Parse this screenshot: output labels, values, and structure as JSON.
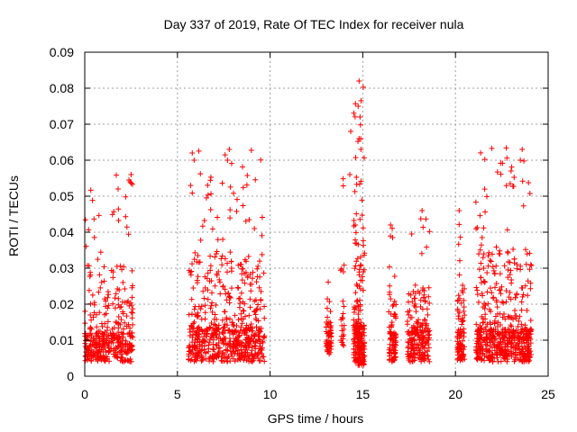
{
  "chart_data": {
    "type": "scatter",
    "title": "Day 337 of 2019, Rate Of TEC Index for receiver nula",
    "xlabel": "GPS time / hours",
    "ylabel": "ROTI / TECUs",
    "xlim": [
      0,
      25
    ],
    "ylim": [
      0,
      0.09
    ],
    "x_ticks": [
      "0",
      "5",
      "10",
      "15",
      "20",
      "25"
    ],
    "y_ticks": [
      "0",
      "0.01",
      "0.02",
      "0.03",
      "0.04",
      "0.05",
      "0.06",
      "0.07",
      "0.08",
      "0.09"
    ],
    "grid": true,
    "marker": "+",
    "color": "#ff0000",
    "clusters": [
      {
        "x_range": [
          0.0,
          2.6
        ],
        "y_base": [
          0.004,
          0.012
        ],
        "y_max": 0.056,
        "count": 380
      },
      {
        "x_range": [
          5.6,
          9.7
        ],
        "y_base": [
          0.004,
          0.013
        ],
        "y_max": 0.063,
        "count": 620
      },
      {
        "x_range": [
          13.0,
          13.3
        ],
        "y_base": [
          0.006,
          0.012
        ],
        "y_max": 0.028,
        "count": 60
      },
      {
        "x_range": [
          13.8,
          14.0
        ],
        "y_base": [
          0.008,
          0.014
        ],
        "y_max": 0.056,
        "count": 25
      },
      {
        "x_range": [
          14.5,
          15.1
        ],
        "y_base": [
          0.003,
          0.014
        ],
        "y_max": 0.082,
        "count": 220
      },
      {
        "x_range": [
          16.4,
          16.8
        ],
        "y_base": [
          0.004,
          0.012
        ],
        "y_max": 0.042,
        "count": 90
      },
      {
        "x_range": [
          17.4,
          18.6
        ],
        "y_base": [
          0.004,
          0.013
        ],
        "y_max": 0.046,
        "count": 210
      },
      {
        "x_range": [
          20.1,
          20.5
        ],
        "y_base": [
          0.004,
          0.012
        ],
        "y_max": 0.046,
        "count": 90
      },
      {
        "x_range": [
          21.1,
          24.1
        ],
        "y_base": [
          0.004,
          0.013
        ],
        "y_max": 0.064,
        "count": 560
      }
    ],
    "highlights": [
      {
        "x": 14.8,
        "y": 0.082
      },
      {
        "x": 14.75,
        "y": 0.075
      },
      {
        "x": 14.85,
        "y": 0.072
      },
      {
        "x": 14.8,
        "y": 0.066
      },
      {
        "x": 14.9,
        "y": 0.063
      },
      {
        "x": 14.35,
        "y": 0.068
      },
      {
        "x": 14.3,
        "y": 0.056
      },
      {
        "x": 5.8,
        "y": 0.062
      },
      {
        "x": 5.9,
        "y": 0.06
      },
      {
        "x": 7.8,
        "y": 0.063
      },
      {
        "x": 7.7,
        "y": 0.06
      },
      {
        "x": 23.6,
        "y": 0.063
      },
      {
        "x": 23.5,
        "y": 0.06
      },
      {
        "x": 23.0,
        "y": 0.057
      },
      {
        "x": 2.5,
        "y": 0.056
      },
      {
        "x": 2.45,
        "y": 0.054
      },
      {
        "x": 1.8,
        "y": 0.052
      },
      {
        "x": 20.2,
        "y": 0.046
      },
      {
        "x": 18.2,
        "y": 0.046
      },
      {
        "x": 16.5,
        "y": 0.042
      }
    ]
  }
}
